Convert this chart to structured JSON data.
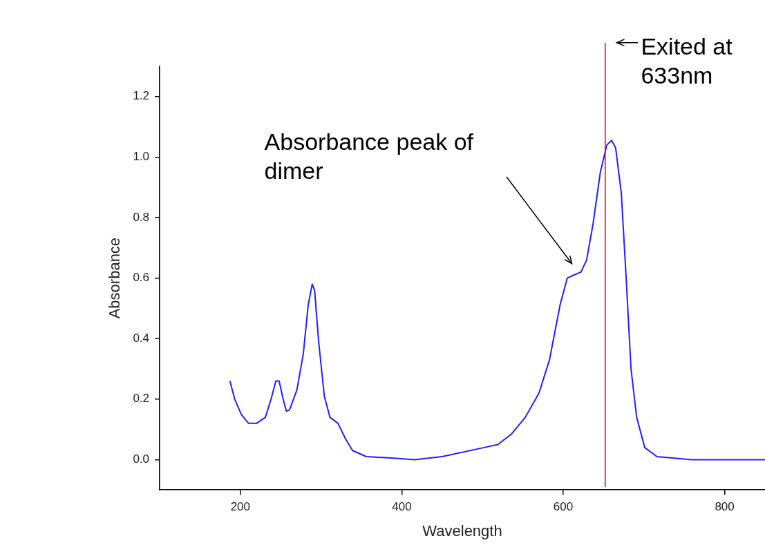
{
  "chart_data": {
    "type": "line",
    "xlabel": "Wavelength",
    "ylabel": "Absorbance",
    "xlim": [
      100,
      850
    ],
    "xticks": [
      200,
      400,
      600,
      800
    ],
    "ylim": [
      -0.1,
      1.3
    ],
    "yticks": [
      {
        "value": 0,
        "label": "0.0"
      },
      {
        "value": 0.2,
        "label": "0.2"
      },
      {
        "value": 0.4,
        "label": "0.4"
      },
      {
        "value": 0.6,
        "label": "0.6"
      },
      {
        "value": 0.8,
        "label": "0.8"
      },
      {
        "value": 1,
        "label": "1.0"
      },
      {
        "value": 1.2,
        "label": "1.2"
      }
    ],
    "grid": false,
    "legend": false,
    "marker": "none",
    "line_style": "solid",
    "series": [
      {
        "color": "#1f1fff",
        "x": [
          187,
          193,
          201,
          210,
          220,
          231,
          238,
          244,
          248,
          253,
          257,
          261,
          270,
          278,
          284,
          289,
          292,
          297,
          304,
          311,
          321,
          330,
          339,
          356,
          390,
          416,
          450,
          502,
          519,
          536,
          553,
          570,
          583,
          596,
          605,
          613,
          622,
          629,
          637,
          646,
          654,
          660,
          665,
          672,
          678,
          684,
          691,
          701,
          716,
          759,
          850
        ],
        "values": [
          0.26,
          0.2,
          0.15,
          0.12,
          0.12,
          0.14,
          0.2,
          0.26,
          0.26,
          0.2,
          0.16,
          0.165,
          0.23,
          0.35,
          0.51,
          0.58,
          0.56,
          0.39,
          0.21,
          0.14,
          0.12,
          0.07,
          0.03,
          0.01,
          0.005,
          0,
          0.01,
          0.04,
          0.05,
          0.085,
          0.14,
          0.22,
          0.33,
          0.51,
          0.6,
          0.61,
          0.62,
          0.66,
          0.78,
          0.95,
          1.04,
          1.055,
          1.03,
          0.88,
          0.6,
          0.3,
          0.14,
          0.04,
          0.01,
          0,
          0
        ]
      }
    ],
    "ref_lines": [
      {
        "axis": "x",
        "value": 652,
        "color": "#e00000"
      }
    ],
    "annotations": [
      "Absorbance peak of dimer",
      "Exited at 633nm"
    ]
  }
}
